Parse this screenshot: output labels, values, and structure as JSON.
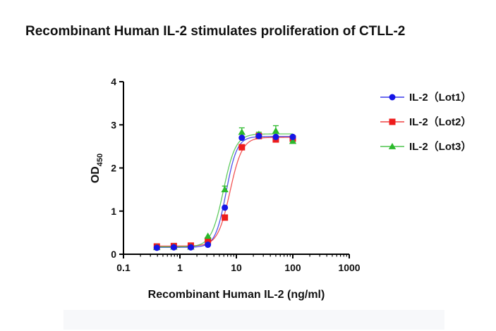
{
  "chart_data": {
    "type": "scatter",
    "title": "Recombinant Human IL-2 stimulates proliferation of CTLL-2",
    "xlabel": "Recombinant Human IL-2 (ng/ml)",
    "ylabel_main": "OD",
    "ylabel_sub": "450",
    "x_scale": "log",
    "xlim": [
      0.1,
      1000
    ],
    "ylim": [
      0,
      4
    ],
    "x_ticks": [
      0.1,
      1,
      10,
      100,
      1000
    ],
    "x_tick_labels": [
      "0.1",
      "1",
      "10",
      "100",
      "1000"
    ],
    "y_ticks": [
      0,
      1,
      2,
      3,
      4
    ],
    "y_tick_labels": [
      "0",
      "1",
      "2",
      "3",
      "4"
    ],
    "grid": false,
    "legend_position": "top-right",
    "x": [
      0.39,
      0.78,
      1.56,
      3.13,
      6.25,
      12.5,
      25,
      50,
      100
    ],
    "series": [
      {
        "name": "IL-2（Lot1）",
        "marker": "circle",
        "color": "#1515e6",
        "values": [
          0.15,
          0.16,
          0.16,
          0.22,
          1.08,
          2.7,
          2.74,
          2.72,
          2.72
        ],
        "fit": {
          "bottom": 0.16,
          "top": 2.73,
          "ec50": 6.6,
          "hill": 4.5
        }
      },
      {
        "name": "IL-2（Lot2）",
        "marker": "square",
        "color": "#ee1c1c",
        "values": [
          0.18,
          0.19,
          0.2,
          0.32,
          0.85,
          2.48,
          2.74,
          2.66,
          2.68
        ],
        "fit": {
          "bottom": 0.19,
          "top": 2.71,
          "ec50": 7.7,
          "hill": 4.0
        }
      },
      {
        "name": "IL-2（Lot3）",
        "marker": "triangle",
        "color": "#2bb92b",
        "values": [
          0.16,
          0.17,
          0.17,
          0.42,
          1.5,
          2.83,
          2.78,
          2.86,
          2.62
        ],
        "errors": [
          0,
          0,
          0,
          0,
          0.08,
          0.1,
          0.05,
          0.12,
          0
        ],
        "fit": {
          "bottom": 0.17,
          "top": 2.79,
          "ec50": 5.9,
          "hill": 4.0
        }
      }
    ]
  }
}
